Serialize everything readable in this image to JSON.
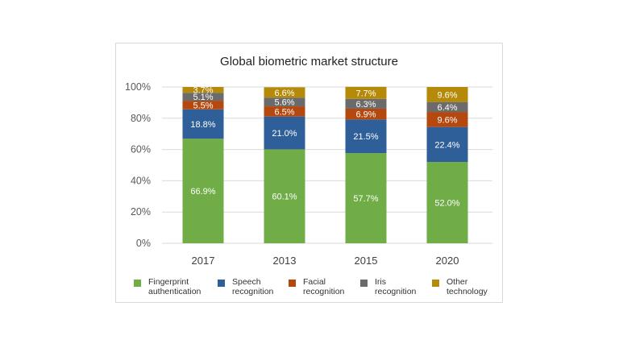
{
  "chart_data": {
    "type": "bar",
    "stacked": true,
    "title": "Global biometric market structure",
    "categories": [
      "2017",
      "2013",
      "2015",
      "2020"
    ],
    "ylim": [
      0,
      100
    ],
    "yticks": [
      "0%",
      "20%",
      "40%",
      "60%",
      "80%",
      "100%"
    ],
    "grid": true,
    "legend_position": "bottom",
    "series": [
      {
        "name": "Fingerprint authentication",
        "color": "#70ad47",
        "values": [
          66.9,
          60.1,
          57.7,
          52.0
        ],
        "labels": [
          "66.9%",
          "60.1%",
          "57.7%",
          "52.0%"
        ]
      },
      {
        "name": "Speech recognition",
        "color": "#2e5f99",
        "values": [
          18.8,
          21.0,
          21.5,
          22.4
        ],
        "labels": [
          "18.8%",
          "21.0%",
          "21.5%",
          "22.4%"
        ]
      },
      {
        "name": "Facial recognition",
        "color": "#b5480f",
        "values": [
          5.5,
          6.5,
          6.9,
          9.6
        ],
        "labels": [
          "5.5%",
          "6.5%",
          "6.9%",
          "9.6%"
        ]
      },
      {
        "name": "Iris recognition",
        "color": "#6b6b6b",
        "values": [
          5.1,
          5.6,
          6.3,
          6.4
        ],
        "labels": [
          "5.1%",
          "5.6%",
          "6.3%",
          "6.4%"
        ]
      },
      {
        "name": "Other technology",
        "color": "#b58a08",
        "values": [
          3.7,
          6.6,
          7.7,
          9.6
        ],
        "labels": [
          "3.7%",
          "6.6%",
          "7.7%",
          "9.6%"
        ]
      }
    ],
    "legend": [
      {
        "line1": "Fingerprint",
        "line2": "authentication"
      },
      {
        "line1": "Speech",
        "line2": "recognition"
      },
      {
        "line1": "Facial",
        "line2": "recognition"
      },
      {
        "line1": "Iris",
        "line2": "recognition"
      },
      {
        "line1": "Other",
        "line2": "technology"
      }
    ]
  }
}
